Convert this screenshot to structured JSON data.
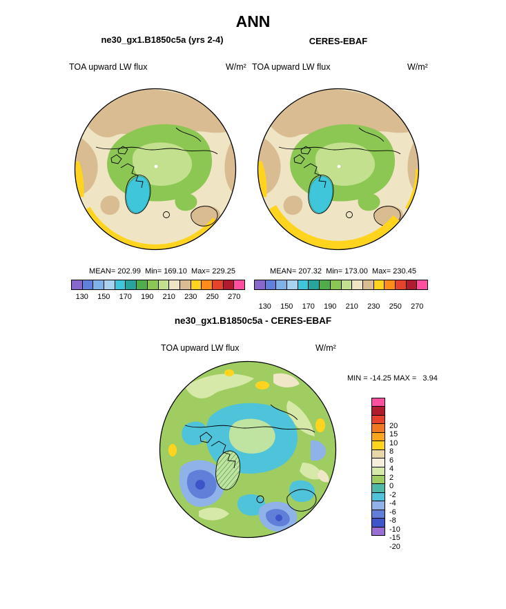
{
  "season_title": "ANN",
  "panels": {
    "model": {
      "title": "ne30_gx1.B1850c5a (yrs 2-4)",
      "field": "TOA upward LW flux",
      "units": "W/m²",
      "stats": "MEAN= 202.99  Min= 169.10  Max= 229.25"
    },
    "obs": {
      "title": "CERES-EBAF",
      "field": "TOA upward LW flux",
      "units": "W/m²",
      "stats": "MEAN= 207.32  Min= 173.00  Max= 230.45"
    },
    "diff": {
      "title": "ne30_gx1.B1850c5a - CERES-EBAF",
      "field": "TOA upward LW flux",
      "units": "W/m²",
      "minmax": "MIN = -14.25 MAX =   3.94"
    }
  },
  "colorbars": {
    "top": {
      "ticks": [
        "130",
        "150",
        "170",
        "190",
        "210",
        "230",
        "250",
        "270"
      ]
    },
    "diff": {
      "labels": [
        "20",
        "15",
        "10",
        "8",
        "6",
        "4",
        "2",
        "0",
        "-2",
        "-4",
        "-6",
        "-8",
        "-10",
        "-15",
        "-20"
      ]
    }
  },
  "chart_data": [
    {
      "type": "heatmap",
      "chart_kind": "north_polar_stereographic_filled_contour_map",
      "season": "ANN",
      "title": "ne30_gx1.B1850c5a (yrs 2-4)",
      "variable": "TOA upward LW flux",
      "units": "W/m²",
      "stats": {
        "mean": 202.99,
        "min": 169.1,
        "max": 229.25
      },
      "contour_levels": [
        130,
        140,
        150,
        160,
        170,
        180,
        190,
        200,
        210,
        220,
        230,
        240,
        250,
        260,
        270
      ],
      "tick_labels": [
        130,
        150,
        170,
        190,
        210,
        230,
        250,
        270
      ],
      "colors": [
        "#8968cd",
        "#6080dc",
        "#7fb2e6",
        "#a8d3f0",
        "#3fc6db",
        "#27a59d",
        "#4fae4a",
        "#8cc653",
        "#c3e08e",
        "#efe5c4",
        "#d9bc92",
        "#ffd41e",
        "#ff8c1a",
        "#e5432e",
        "#b01c2e",
        "#ff4fa0"
      ],
      "colors_order": "low_to_high_left_to_right",
      "legend_position": "bottom"
    },
    {
      "type": "heatmap",
      "chart_kind": "north_polar_stereographic_filled_contour_map",
      "season": "ANN",
      "title": "CERES-EBAF",
      "variable": "TOA upward LW flux",
      "units": "W/m²",
      "stats": {
        "mean": 207.32,
        "min": 173.0,
        "max": 230.45
      },
      "contour_levels": [
        130,
        140,
        150,
        160,
        170,
        180,
        190,
        200,
        210,
        220,
        230,
        240,
        250,
        260,
        270
      ],
      "tick_labels": [
        130,
        150,
        170,
        190,
        210,
        230,
        250,
        270
      ],
      "colors": [
        "#8968cd",
        "#6080dc",
        "#7fb2e6",
        "#a8d3f0",
        "#3fc6db",
        "#27a59d",
        "#4fae4a",
        "#8cc653",
        "#c3e08e",
        "#efe5c4",
        "#d9bc92",
        "#ffd41e",
        "#ff8c1a",
        "#e5432e",
        "#b01c2e",
        "#ff4fa0"
      ],
      "colors_order": "low_to_high_left_to_right",
      "legend_position": "bottom"
    },
    {
      "type": "heatmap",
      "chart_kind": "north_polar_stereographic_filled_contour_map_difference",
      "season": "ANN",
      "title": "ne30_gx1.B1850c5a - CERES-EBAF",
      "variable": "TOA upward LW flux",
      "units": "W/m²",
      "stats": {
        "min": -14.25,
        "max": 3.94
      },
      "contour_levels": [
        -20,
        -15,
        -10,
        -8,
        -6,
        -4,
        -2,
        0,
        2,
        4,
        6,
        8,
        10,
        15,
        20
      ],
      "colors": [
        "#ff4fa0",
        "#b01c2e",
        "#e5432e",
        "#f07820",
        "#ffa51e",
        "#ffd41e",
        "#e8d8a8",
        "#f4eeda",
        "#d6e9a8",
        "#a0cd62",
        "#4db8a8",
        "#4fc3d9",
        "#8fb2e8",
        "#5f7fd9",
        "#3d55c8",
        "#9a6fd4"
      ],
      "colors_order": "high_to_low_top_to_bottom",
      "legend_position": "right"
    }
  ]
}
